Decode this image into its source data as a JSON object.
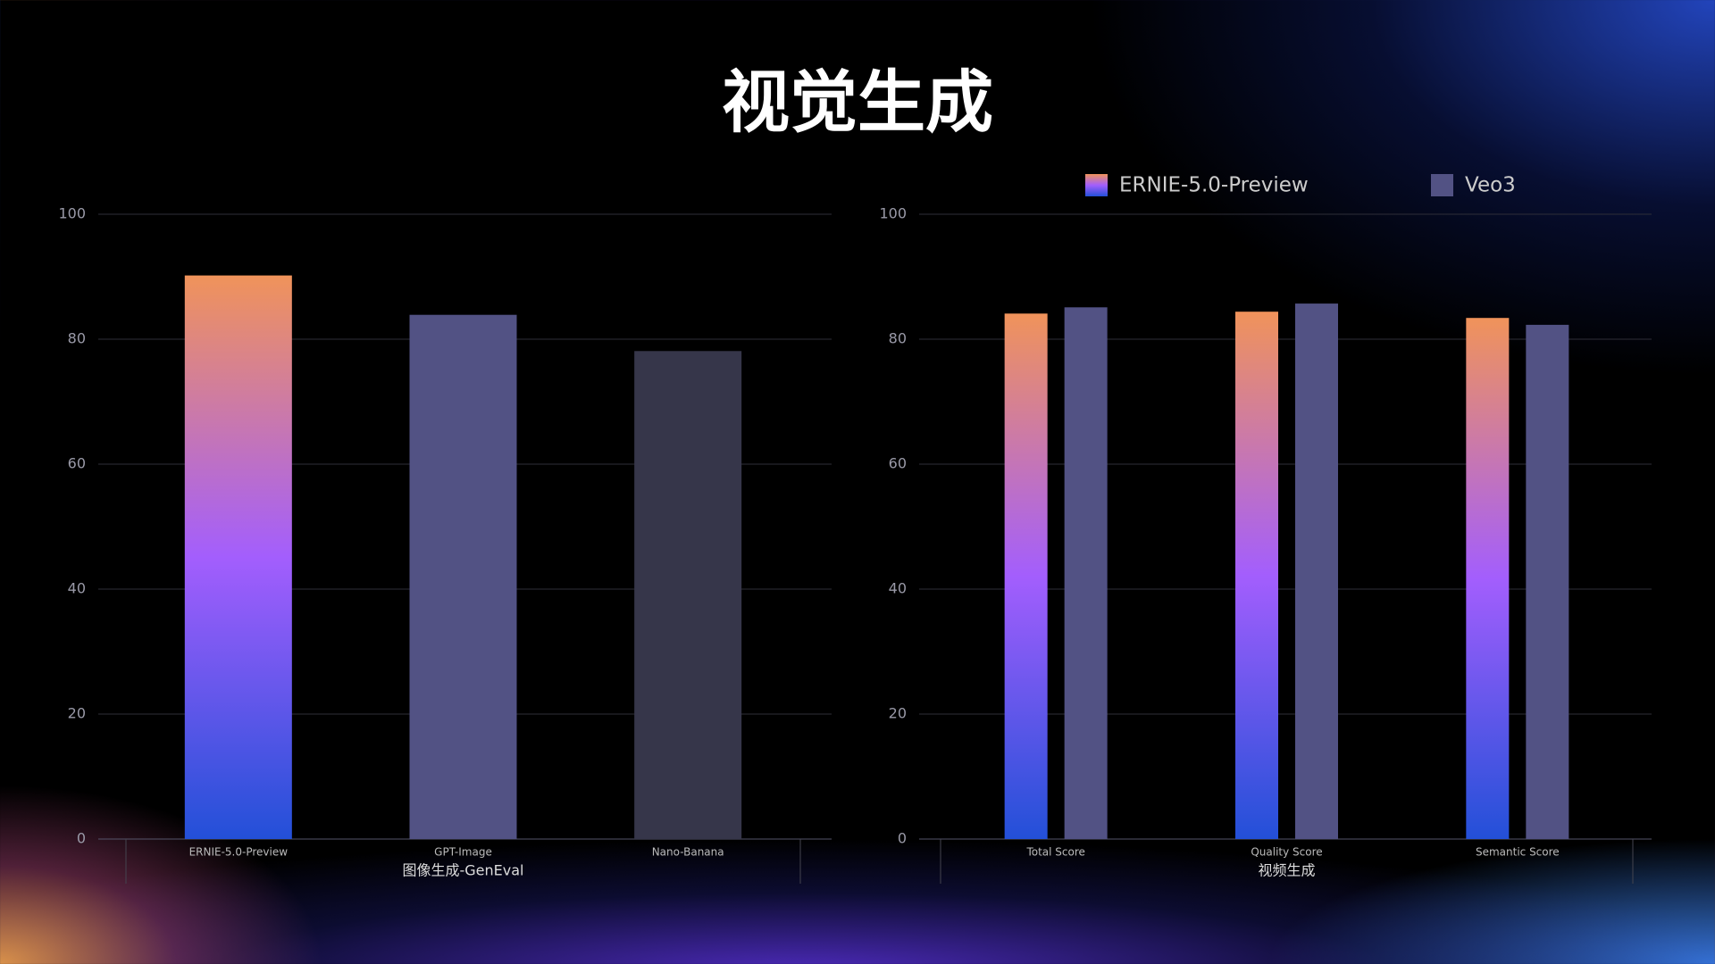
{
  "title": "视觉生成",
  "chart_data": [
    {
      "type": "bar",
      "xlabel": "图像生成-GenEval",
      "categories": [
        "ERNIE-5.0-Preview",
        "GPT-Image",
        "Nano-Banana"
      ],
      "values": [
        90.2,
        83.9,
        78.1
      ],
      "colors": [
        [
          "#f0935a",
          "#a35efd",
          "#2350d8"
        ],
        "#525284",
        "#36364a"
      ],
      "ylim": [
        0,
        100
      ],
      "yticks": [
        0,
        20,
        40,
        60,
        80,
        100
      ],
      "grid": true
    },
    {
      "type": "grouped-bar",
      "xlabel": "视频生成",
      "categories": [
        "Total Score",
        "Quality Score",
        "Semantic Score"
      ],
      "series": [
        {
          "name": "ERNIE-5.0-Preview",
          "color": [
            "#f0935a",
            "#a35efd",
            "#2350d8"
          ],
          "values": [
            84.1,
            84.4,
            83.4
          ]
        },
        {
          "name": "Veo3",
          "color": "#525284",
          "values": [
            85.1,
            85.7,
            82.3
          ]
        }
      ],
      "ylim": [
        0,
        100
      ],
      "yticks": [
        0,
        20,
        40,
        60,
        80,
        100
      ],
      "grid": true,
      "legend": "top"
    }
  ]
}
